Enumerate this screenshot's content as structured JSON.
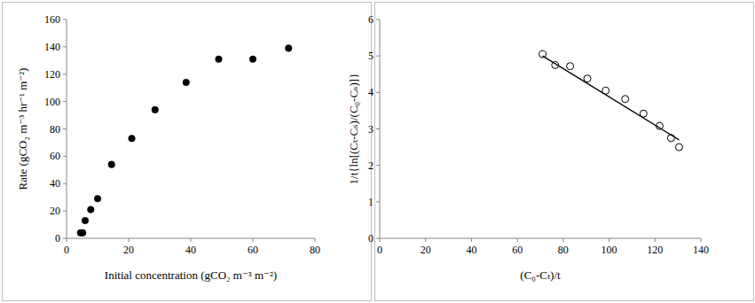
{
  "chart_data": [
    {
      "type": "scatter",
      "x_label": "Initial concentration (gCO₂ m⁻³ m⁻²)",
      "y_label": "Rate (gCO₂ m⁻³ hr⁻¹ m⁻²)",
      "xlim": [
        0,
        80
      ],
      "xticks": [
        0,
        20,
        40,
        60,
        80
      ],
      "ylim": [
        0,
        160
      ],
      "yticks": [
        0,
        20,
        40,
        60,
        80,
        100,
        120,
        140,
        160
      ],
      "grid": false,
      "series": [
        {
          "type": "scatter",
          "marker": "circle",
          "color": "#000000",
          "x": [
            4.5,
            5.2,
            6,
            7.8,
            10,
            14.5,
            21,
            28.5,
            38.5,
            49,
            60,
            71.5
          ],
          "values": [
            4,
            4,
            13,
            21,
            29,
            54,
            73,
            94,
            114,
            131,
            131,
            139
          ]
        }
      ]
    },
    {
      "type": "scatter",
      "x_label": "(C₀-Cₜ)/t",
      "y_label": "1/t{ln[(Cₜ-Cₛ)/(C₀-Cₛ)]}",
      "xlim": [
        0,
        140
      ],
      "xticks": [
        0,
        20,
        40,
        60,
        80,
        100,
        120,
        140
      ],
      "ylim": [
        0,
        6
      ],
      "yticks": [
        0,
        1,
        2,
        3,
        4,
        5,
        6
      ],
      "grid": false,
      "series": [
        {
          "type": "scatter",
          "marker": "circle-open",
          "color": "#000000",
          "x": [
            71,
            76.5,
            83,
            90.5,
            98.5,
            107,
            115,
            122,
            127,
            130.5
          ],
          "values": [
            5.05,
            4.75,
            4.72,
            4.38,
            4.05,
            3.82,
            3.42,
            3.08,
            2.75,
            2.5
          ]
        },
        {
          "type": "line",
          "line_style": "solid",
          "color": "#000000",
          "x": [
            71,
            130.5
          ],
          "values": [
            5.0,
            2.7
          ]
        }
      ]
    }
  ]
}
